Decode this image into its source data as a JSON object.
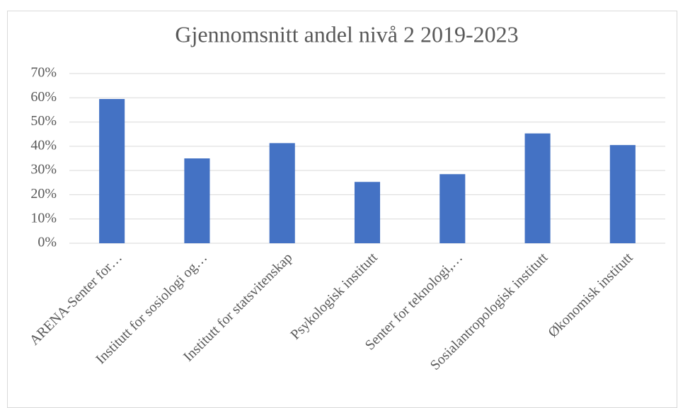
{
  "chart_data": {
    "type": "bar",
    "title": "Gjennomsnitt andel nivå 2 2019-2023",
    "categories": [
      "ARENA-Senter for…",
      "Institutt for sosiologi og…",
      "Institutt for statsvitenskap",
      "Psykologisk institutt",
      "Senter for teknologi,…",
      "Sosialantropologisk institutt",
      "Økonomisk institutt"
    ],
    "values": [
      59.5,
      35,
      41.3,
      25.3,
      28.5,
      45.3,
      40.5
    ],
    "color": "#4472c4",
    "ylim": [
      0,
      70
    ],
    "yticks": [
      {
        "value": 0,
        "label": "0%"
      },
      {
        "value": 10,
        "label": "10%"
      },
      {
        "value": 20,
        "label": "20%"
      },
      {
        "value": 30,
        "label": "30%"
      },
      {
        "value": 40,
        "label": "40%"
      },
      {
        "value": 50,
        "label": "50%"
      },
      {
        "value": 60,
        "label": "60%"
      },
      {
        "value": 70,
        "label": "70%"
      }
    ],
    "grid": true
  }
}
